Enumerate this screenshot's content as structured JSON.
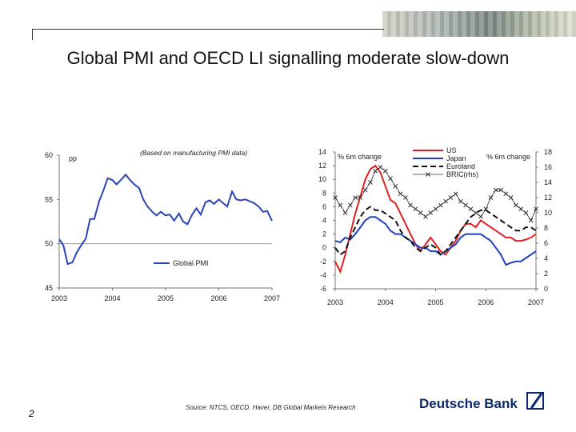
{
  "slide": {
    "title": "Global PMI and OECD LI signalling moderate slow-down",
    "source": "Source: NTCS, OECD, Haver, DB Global Markets Research",
    "page_number": "2",
    "brand": "Deutsche Bank"
  },
  "colors": {
    "global_pmi": "#2a44b8",
    "us": "#e02020",
    "japan": "#2040c0",
    "euroland": "#111111",
    "bric": "#333333",
    "brand": "#0a2a6b"
  },
  "chart_data": [
    {
      "type": "line",
      "unit_label": "pp",
      "note": "(Based on manufacturing PMI data)",
      "xlim": [
        2003,
        2007
      ],
      "x_ticks": [
        "2003",
        "2004",
        "2005",
        "2006",
        "2007"
      ],
      "ylim": [
        45,
        60
      ],
      "y_ticks": [
        "60",
        "55",
        "50",
        "45"
      ],
      "reference_line": 50,
      "legend_position": "bottom-center",
      "series": [
        {
          "name": "Global PMI",
          "color": "#2a44b8",
          "x": [
            2003.0,
            2003.08,
            2003.16,
            2003.25,
            2003.33,
            2003.41,
            2003.5,
            2003.58,
            2003.66,
            2003.75,
            2003.83,
            2003.91,
            2004.0,
            2004.08,
            2004.16,
            2004.25,
            2004.33,
            2004.41,
            2004.5,
            2004.58,
            2004.66,
            2004.75,
            2004.83,
            2004.91,
            2005.0,
            2005.08,
            2005.16,
            2005.25,
            2005.33,
            2005.41,
            2005.5,
            2005.58,
            2005.66,
            2005.75,
            2005.83,
            2005.91,
            2006.0,
            2006.08,
            2006.16,
            2006.25,
            2006.33,
            2006.41,
            2006.5,
            2006.58,
            2006.66,
            2006.75,
            2006.83,
            2006.91,
            2007.0
          ],
          "values": [
            50.5,
            49.8,
            47.7,
            47.9,
            49.0,
            49.8,
            50.6,
            52.8,
            52.8,
            54.8,
            56.0,
            57.4,
            57.2,
            56.7,
            57.2,
            57.8,
            57.2,
            56.7,
            56.3,
            55.0,
            54.2,
            53.6,
            53.2,
            53.6,
            53.2,
            53.3,
            52.6,
            53.4,
            52.5,
            52.2,
            53.3,
            54.0,
            53.3,
            54.7,
            54.9,
            54.5,
            55.0,
            54.6,
            54.2,
            55.9,
            55.0,
            54.9,
            55.0,
            54.8,
            54.6,
            54.2,
            53.6,
            53.7,
            52.6
          ]
        }
      ]
    },
    {
      "type": "line",
      "left_axis_label": "% 6m change",
      "right_axis_label": "% 6m change",
      "xlim": [
        2003,
        2007
      ],
      "x_ticks": [
        "2003",
        "2004",
        "2005",
        "2006",
        "2007"
      ],
      "ylim_left": [
        -6,
        14
      ],
      "y_ticks_left": [
        "14",
        "12",
        "10",
        "8",
        "6",
        "4",
        "2",
        "0",
        "-2",
        "-4",
        "-6"
      ],
      "ylim_right": [
        0,
        18
      ],
      "y_ticks_right": [
        "18",
        "16",
        "14",
        "12",
        "10",
        "8",
        "6",
        "4",
        "2",
        "0"
      ],
      "legend_position": "top-center",
      "series": [
        {
          "name": "US",
          "axis": "left",
          "color": "#e02020",
          "style": "solid",
          "x": [
            2003.0,
            2003.1,
            2003.2,
            2003.3,
            2003.4,
            2003.5,
            2003.6,
            2003.7,
            2003.8,
            2003.9,
            2004.0,
            2004.1,
            2004.2,
            2004.3,
            2004.4,
            2004.5,
            2004.6,
            2004.7,
            2004.8,
            2004.9,
            2005.0,
            2005.1,
            2005.2,
            2005.3,
            2005.4,
            2005.5,
            2005.6,
            2005.7,
            2005.8,
            2005.9,
            2006.0,
            2006.1,
            2006.2,
            2006.3,
            2006.4,
            2006.5,
            2006.6,
            2006.7,
            2006.8,
            2006.9,
            2007.0
          ],
          "values": [
            -2.0,
            -3.5,
            -1.0,
            2.0,
            5.0,
            7.5,
            10.0,
            11.5,
            12.0,
            11.0,
            9.0,
            7.0,
            6.5,
            5.0,
            3.5,
            2.0,
            0.5,
            -0.5,
            0.5,
            1.5,
            0.5,
            -0.5,
            -1.0,
            0.0,
            1.0,
            2.5,
            3.5,
            3.5,
            3.0,
            4.0,
            3.5,
            3.0,
            2.5,
            2.0,
            1.5,
            1.5,
            1.0,
            1.0,
            1.2,
            1.5,
            2.0
          ]
        },
        {
          "name": "Japan",
          "axis": "left",
          "color": "#2040c0",
          "style": "solid",
          "x": [
            2003.0,
            2003.1,
            2003.2,
            2003.3,
            2003.4,
            2003.5,
            2003.6,
            2003.7,
            2003.8,
            2003.9,
            2004.0,
            2004.1,
            2004.2,
            2004.3,
            2004.4,
            2004.5,
            2004.6,
            2004.7,
            2004.8,
            2004.9,
            2005.0,
            2005.1,
            2005.2,
            2005.3,
            2005.4,
            2005.5,
            2005.6,
            2005.7,
            2005.8,
            2005.9,
            2006.0,
            2006.1,
            2006.2,
            2006.3,
            2006.4,
            2006.5,
            2006.6,
            2006.7,
            2006.8,
            2006.9,
            2007.0
          ],
          "values": [
            1.0,
            0.8,
            1.5,
            1.2,
            2.0,
            3.0,
            4.0,
            4.5,
            4.5,
            4.0,
            3.5,
            2.5,
            2.0,
            2.0,
            1.5,
            1.0,
            0.5,
            0.0,
            0.0,
            -0.5,
            -0.5,
            -1.0,
            -0.5,
            0.0,
            0.5,
            1.5,
            2.0,
            2.0,
            2.0,
            2.0,
            1.5,
            1.0,
            0.0,
            -1.0,
            -2.5,
            -2.2,
            -2.0,
            -2.0,
            -1.5,
            -1.0,
            -0.5
          ]
        },
        {
          "name": "Euroland",
          "axis": "left",
          "color": "#111111",
          "style": "dashed",
          "x": [
            2003.0,
            2003.1,
            2003.2,
            2003.3,
            2003.4,
            2003.5,
            2003.6,
            2003.7,
            2003.8,
            2003.9,
            2004.0,
            2004.1,
            2004.2,
            2004.3,
            2004.4,
            2004.5,
            2004.6,
            2004.7,
            2004.8,
            2004.9,
            2005.0,
            2005.1,
            2005.2,
            2005.3,
            2005.4,
            2005.5,
            2005.6,
            2005.7,
            2005.8,
            2005.9,
            2006.0,
            2006.1,
            2006.2,
            2006.3,
            2006.4,
            2006.5,
            2006.6,
            2006.7,
            2006.8,
            2006.9,
            2007.0
          ],
          "values": [
            0.0,
            -1.0,
            -0.5,
            1.5,
            3.0,
            4.5,
            5.5,
            6.0,
            5.5,
            5.5,
            5.0,
            4.5,
            4.0,
            2.5,
            1.5,
            1.0,
            0.0,
            -0.5,
            0.0,
            0.5,
            0.0,
            -1.0,
            -0.5,
            0.5,
            1.5,
            2.5,
            3.5,
            4.5,
            5.0,
            5.5,
            5.5,
            5.0,
            4.5,
            4.0,
            3.5,
            3.0,
            2.5,
            2.5,
            3.0,
            3.0,
            2.5
          ]
        },
        {
          "name": "BRIC(rhs)",
          "axis": "right",
          "color": "#333333",
          "style": "crosses",
          "x": [
            2003.0,
            2003.1,
            2003.2,
            2003.3,
            2003.4,
            2003.5,
            2003.6,
            2003.7,
            2003.8,
            2003.9,
            2004.0,
            2004.1,
            2004.2,
            2004.3,
            2004.4,
            2004.5,
            2004.6,
            2004.7,
            2004.8,
            2004.9,
            2005.0,
            2005.1,
            2005.2,
            2005.3,
            2005.4,
            2005.5,
            2005.6,
            2005.7,
            2005.8,
            2005.9,
            2006.0,
            2006.1,
            2006.2,
            2006.3,
            2006.4,
            2006.5,
            2006.6,
            2006.7,
            2006.8,
            2006.9,
            2007.0
          ],
          "values": [
            12.0,
            11.0,
            10.0,
            11.0,
            12.0,
            12.0,
            13.0,
            14.0,
            15.5,
            16.0,
            15.5,
            14.5,
            13.5,
            12.5,
            12.0,
            11.0,
            10.5,
            10.0,
            9.5,
            10.0,
            10.5,
            11.0,
            11.5,
            12.0,
            12.5,
            11.5,
            11.0,
            10.5,
            10.0,
            9.5,
            10.5,
            12.0,
            13.0,
            13.0,
            12.5,
            12.0,
            11.0,
            10.5,
            10.0,
            9.0,
            10.5
          ]
        }
      ]
    }
  ]
}
